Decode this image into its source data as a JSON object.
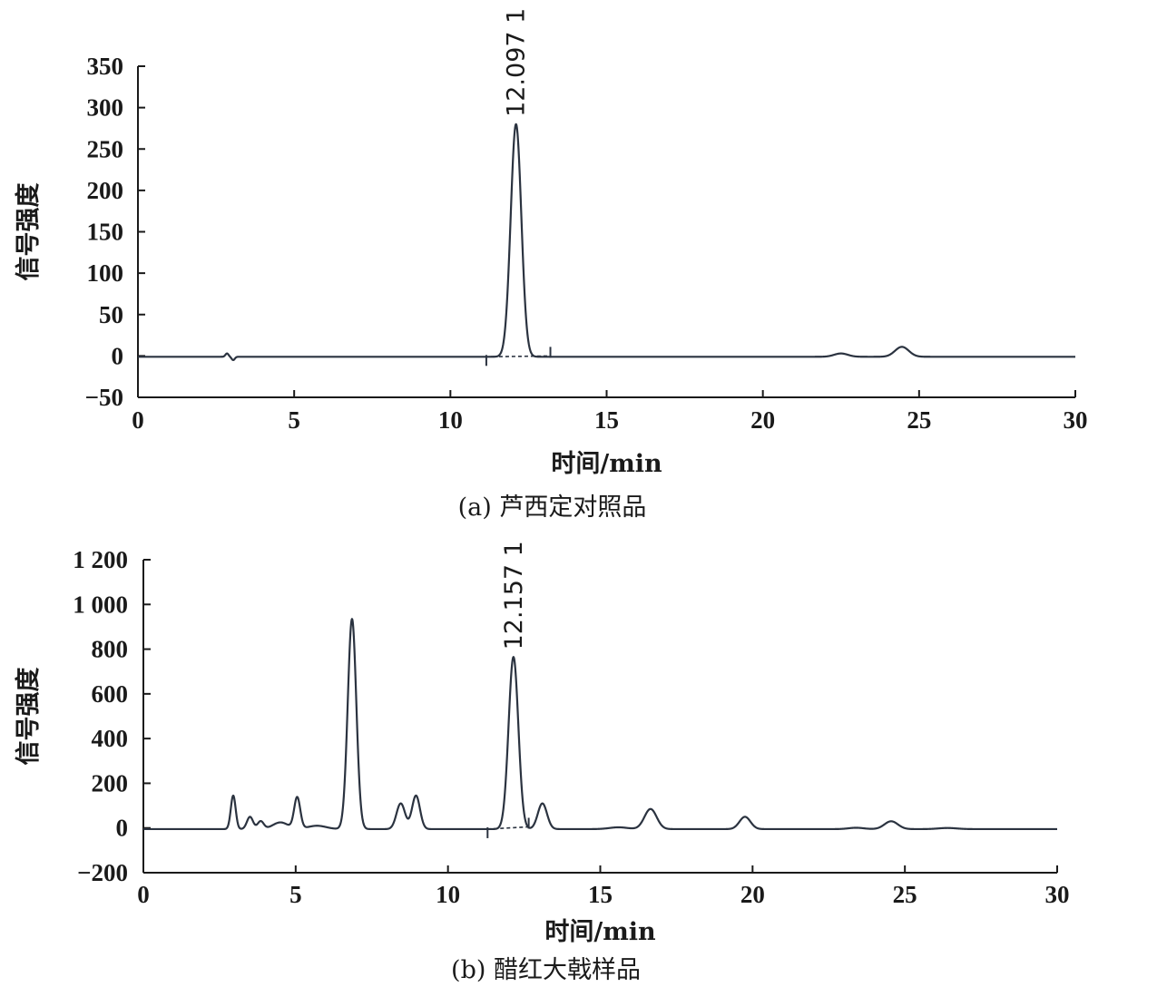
{
  "chart_data": [
    {
      "type": "line",
      "caption": "(a)  芦西定对照品",
      "xlabel": "时间/min",
      "ylabel": "信号强度",
      "xlim": [
        0,
        30
      ],
      "ylim": [
        -50,
        350
      ],
      "x_ticks": [
        0,
        5,
        10,
        15,
        20,
        25,
        30
      ],
      "x_tick_labels": [
        "0",
        "5",
        "10",
        "15",
        "20",
        "25",
        "30"
      ],
      "y_ticks": [
        -50,
        0,
        50,
        100,
        150,
        200,
        250,
        300,
        350
      ],
      "y_tick_labels": [
        "−50",
        "0",
        "50",
        "100",
        "150",
        "200",
        "250",
        "300",
        "350"
      ],
      "baseline": -1,
      "peaks": [
        {
          "rt": 2.85,
          "height": 4,
          "width": 0.05
        },
        {
          "rt": 3.05,
          "height": -4,
          "width": 0.05
        },
        {
          "rt": 12.1,
          "height": 281,
          "width": 0.17
        },
        {
          "rt": 22.5,
          "height": 4,
          "width": 0.22
        },
        {
          "rt": 24.45,
          "height": 12,
          "width": 0.22
        }
      ],
      "annotations": [
        {
          "text": "12.097 1",
          "x": 12.097
        }
      ],
      "integration": {
        "start": 11.15,
        "end": 13.2
      }
    },
    {
      "type": "line",
      "caption": "(b)  醋红大戟样品",
      "xlabel": "时间/min",
      "ylabel": "信号强度",
      "xlim": [
        0,
        30
      ],
      "ylim": [
        -200,
        1200
      ],
      "x_ticks": [
        0,
        5,
        10,
        15,
        20,
        25,
        30
      ],
      "x_tick_labels": [
        "0",
        "5",
        "10",
        "15",
        "20",
        "25",
        "30"
      ],
      "y_ticks": [
        -200,
        0,
        200,
        400,
        600,
        800,
        1000,
        1200
      ],
      "y_tick_labels": [
        "−200",
        "0",
        "200",
        "400",
        "600",
        "800",
        "1 000",
        "1 200"
      ],
      "baseline": -5,
      "peaks": [
        {
          "rt": 2.95,
          "height": 150,
          "width": 0.08
        },
        {
          "rt": 3.5,
          "height": 55,
          "width": 0.1
        },
        {
          "rt": 3.85,
          "height": 35,
          "width": 0.1
        },
        {
          "rt": 4.5,
          "height": 30,
          "width": 0.25
        },
        {
          "rt": 5.05,
          "height": 140,
          "width": 0.1
        },
        {
          "rt": 5.7,
          "height": 15,
          "width": 0.3
        },
        {
          "rt": 6.85,
          "height": 940,
          "width": 0.14
        },
        {
          "rt": 8.45,
          "height": 115,
          "width": 0.14
        },
        {
          "rt": 8.95,
          "height": 150,
          "width": 0.13
        },
        {
          "rt": 12.15,
          "height": 770,
          "width": 0.16
        },
        {
          "rt": 13.1,
          "height": 115,
          "width": 0.15
        },
        {
          "rt": 15.6,
          "height": 8,
          "width": 0.3
        },
        {
          "rt": 16.65,
          "height": 90,
          "width": 0.2
        },
        {
          "rt": 19.75,
          "height": 55,
          "width": 0.18
        },
        {
          "rt": 23.4,
          "height": 6,
          "width": 0.25
        },
        {
          "rt": 24.55,
          "height": 35,
          "width": 0.22
        },
        {
          "rt": 26.4,
          "height": 5,
          "width": 0.3
        }
      ],
      "annotations": [
        {
          "text": "12.157 1",
          "x": 12.157
        }
      ],
      "integration": {
        "start": 11.3,
        "end": 12.65
      }
    }
  ]
}
